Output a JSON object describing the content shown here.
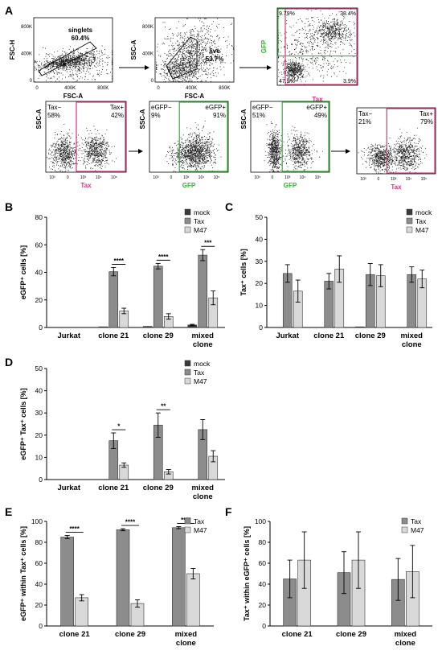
{
  "panel_letters": [
    "A",
    "B",
    "C",
    "D",
    "E",
    "F"
  ],
  "colors": {
    "mock": "#3a3a3a",
    "tax": "#8c8c8c",
    "m47": "#d9d9d9",
    "gfp_gate": "#2db82d",
    "tax_gate": "#e0307a",
    "axis": "#000000",
    "dots": "#1a1a1a"
  },
  "flow": {
    "top": [
      {
        "id": "singlets",
        "xlabel": "FSC-A",
        "ylabel": "FSC-H",
        "xticks": [
          "0",
          "400K",
          "800K"
        ],
        "yticks": [
          "0",
          "400K",
          "800K"
        ],
        "gate_label": "singlets",
        "gate_value": "60.4%"
      },
      {
        "id": "live",
        "xlabel": "FSC-A",
        "ylabel": "SSC-A",
        "xticks": [
          "0",
          "400K",
          "800K"
        ],
        "yticks": [
          "0",
          "400K",
          "800K"
        ],
        "gate_label": "live",
        "gate_value": "53.7%"
      },
      {
        "id": "gfp-tax-quadrant",
        "xlabel": "Tax",
        "ylabel": "GFP",
        "quadrants": [
          "9.79%",
          "38.4%",
          "47.9%",
          "3.9%"
        ]
      }
    ],
    "bottom": [
      {
        "id": "tax-hist-1",
        "xlabel": "Tax",
        "ylabel": "SSC-A",
        "neg_label": "Tax−",
        "neg_value": "58%",
        "pos_label": "Tax+",
        "pos_value": "42%",
        "gate": "tax"
      },
      {
        "id": "gfp-hist-1",
        "xlabel": "GFP",
        "ylabel": "SSC-A",
        "neg_label": "eGFP−",
        "neg_value": "9%",
        "pos_label": "eGFP+",
        "pos_value": "91%",
        "gate": "gfp"
      },
      {
        "id": "gfp-hist-2",
        "xlabel": "GFP",
        "ylabel": "SSC-A",
        "neg_label": "eGFP−",
        "neg_value": "51%",
        "pos_label": "eGFP+",
        "pos_value": "49%",
        "gate": "gfp"
      },
      {
        "id": "tax-hist-2",
        "xlabel": "Tax",
        "ylabel": "",
        "neg_label": "Tax−",
        "neg_value": "21%",
        "pos_label": "Tax+",
        "pos_value": "79%",
        "gate": "tax"
      }
    ],
    "log_ticks": [
      "10³",
      "0",
      "10³",
      "10⁴",
      "10⁵"
    ]
  },
  "chart_data": [
    {
      "panel": "B",
      "type": "bar",
      "ylabel": "eGFP⁺ cells [%]",
      "ylim": [
        0,
        80
      ],
      "yticks": [
        0,
        20,
        40,
        60,
        80
      ],
      "categories": [
        "Jurkat",
        "clone 21",
        "clone 29",
        "mixed clone"
      ],
      "series": [
        {
          "name": "mock",
          "values": [
            0,
            0.5,
            0.8,
            1.8
          ],
          "errors": [
            0,
            0,
            0,
            0.5
          ]
        },
        {
          "name": "Tax",
          "values": [
            0,
            40.5,
            44.5,
            52.5
          ],
          "errors": [
            0,
            3,
            2,
            4
          ]
        },
        {
          "name": "M47",
          "values": [
            0,
            12,
            8,
            21.5
          ],
          "errors": [
            0,
            2,
            2,
            5
          ]
        }
      ],
      "significance": [
        {
          "category": 1,
          "label": "****"
        },
        {
          "category": 2,
          "label": "****"
        },
        {
          "category": 3,
          "label": "***"
        }
      ]
    },
    {
      "panel": "C",
      "type": "bar",
      "ylabel": "Tax⁺ cells [%]",
      "ylim": [
        0,
        50
      ],
      "yticks": [
        0,
        10,
        20,
        30,
        40,
        50
      ],
      "categories": [
        "Jurkat",
        "clone 21",
        "clone 29",
        "mixed clone"
      ],
      "series": [
        {
          "name": "mock",
          "values": [
            0,
            0,
            0.3,
            0
          ],
          "errors": [
            0,
            0,
            0,
            0
          ]
        },
        {
          "name": "Tax",
          "values": [
            24.5,
            21,
            24,
            24
          ],
          "errors": [
            4,
            3.5,
            5,
            3.5
          ]
        },
        {
          "name": "M47",
          "values": [
            16.5,
            26.5,
            23.5,
            22
          ],
          "errors": [
            5,
            6,
            5,
            4
          ]
        }
      ],
      "significance": []
    },
    {
      "panel": "D",
      "type": "bar",
      "ylabel": "eGFP⁺ Tax⁺ cells [%]",
      "ylim": [
        0,
        50
      ],
      "yticks": [
        0,
        10,
        20,
        30,
        40,
        50
      ],
      "categories": [
        "Jurkat",
        "clone 21",
        "clone 29",
        "mixed clone"
      ],
      "series": [
        {
          "name": "mock",
          "values": [
            0,
            0,
            0,
            0
          ],
          "errors": [
            0,
            0,
            0,
            0
          ]
        },
        {
          "name": "Tax",
          "values": [
            0,
            17.5,
            24.5,
            22.5
          ],
          "errors": [
            0,
            3.5,
            5.5,
            4.5
          ]
        },
        {
          "name": "M47",
          "values": [
            0,
            6.5,
            3.5,
            10.5
          ],
          "errors": [
            0,
            1,
            1,
            2.5
          ]
        }
      ],
      "significance": [
        {
          "category": 1,
          "label": "*"
        },
        {
          "category": 2,
          "label": "**"
        }
      ]
    },
    {
      "panel": "E",
      "type": "bar",
      "ylabel": "eGFP⁺ within Tax⁺ cells [%]",
      "ylim": [
        0,
        100
      ],
      "yticks": [
        0,
        20,
        40,
        60,
        80,
        100
      ],
      "categories": [
        "clone 21",
        "clone 29",
        "mixed clone"
      ],
      "series": [
        {
          "name": "Tax",
          "values": [
            85,
            92,
            94
          ],
          "errors": [
            1.5,
            1,
            1
          ]
        },
        {
          "name": "M47",
          "values": [
            27,
            21.5,
            50
          ],
          "errors": [
            3,
            3.5,
            5
          ]
        }
      ],
      "significance": [
        {
          "category": 0,
          "label": "****"
        },
        {
          "category": 1,
          "label": "****"
        },
        {
          "category": 2,
          "label": "****"
        }
      ]
    },
    {
      "panel": "F",
      "type": "bar",
      "ylabel": "Tax⁺ within eGFP⁺ cells [%]",
      "ylim": [
        0,
        100
      ],
      "yticks": [
        0,
        20,
        40,
        60,
        80,
        100
      ],
      "categories": [
        "clone 21",
        "clone 29",
        "mixed clone"
      ],
      "series": [
        {
          "name": "Tax",
          "values": [
            45,
            51,
            44.5
          ],
          "errors": [
            18,
            20,
            20
          ]
        },
        {
          "name": "M47",
          "values": [
            63,
            63,
            52
          ],
          "errors": [
            27,
            27,
            25
          ]
        }
      ],
      "significance": []
    }
  ]
}
